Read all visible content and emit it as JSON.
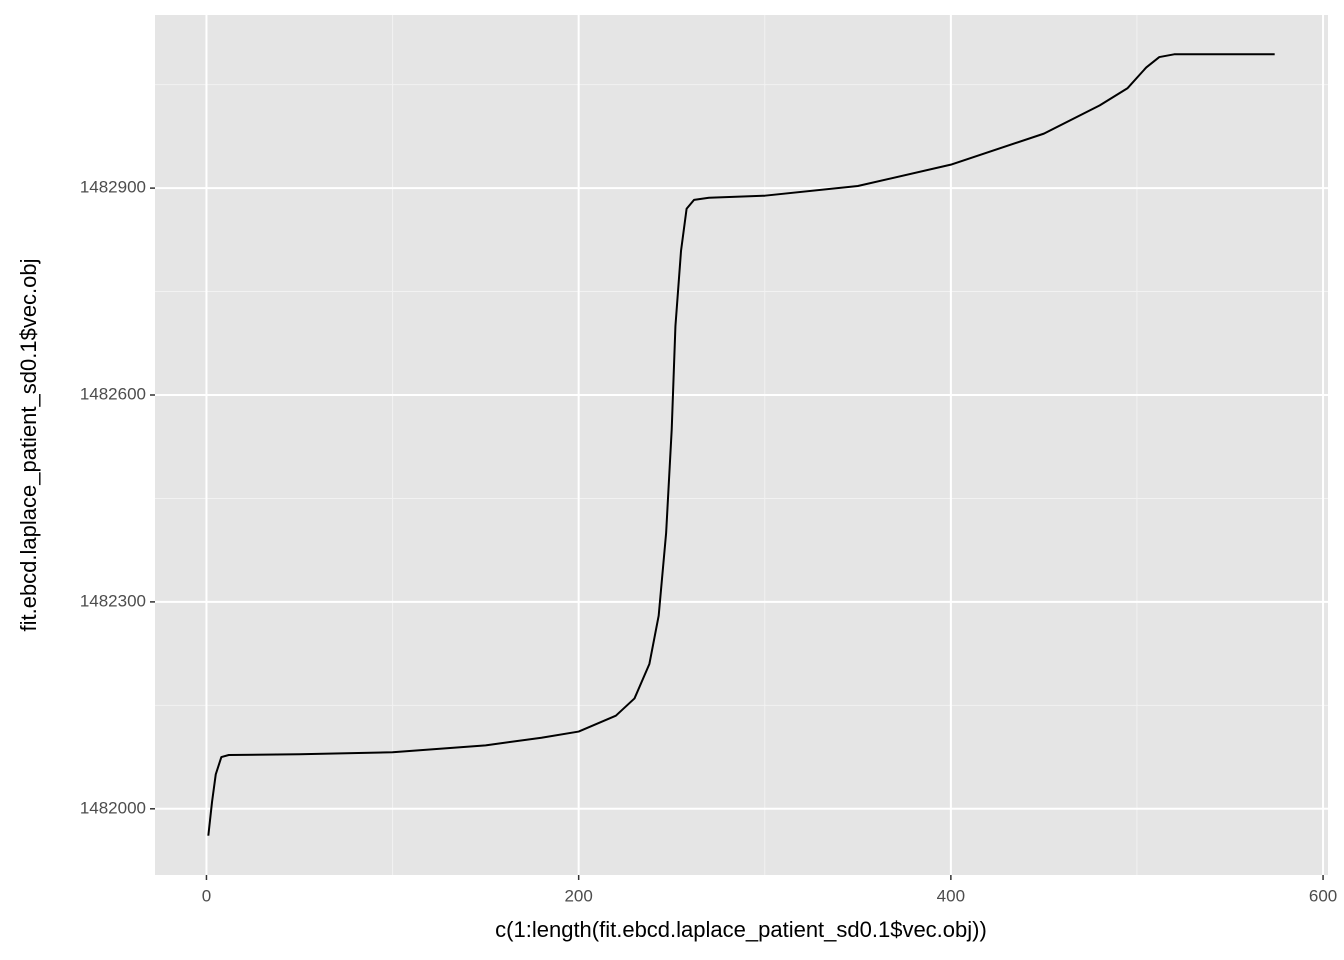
{
  "chart_data": {
    "type": "line",
    "xlabel": "c(1:length(fit.ebcd.laplace_patient_sd0.1$vec.obj))",
    "ylabel": "fit.ebcd.laplace_patient_sd0.1$vec.obj",
    "x": [
      1,
      3,
      5,
      8,
      12,
      50,
      100,
      150,
      180,
      200,
      220,
      230,
      238,
      243,
      247,
      250,
      252,
      255,
      258,
      262,
      270,
      300,
      350,
      400,
      450,
      480,
      495,
      505,
      512,
      520,
      574
    ],
    "values": [
      1481961,
      1482010,
      1482050,
      1482075,
      1482078,
      1482079,
      1482082,
      1482092,
      1482103,
      1482112,
      1482135,
      1482160,
      1482210,
      1482280,
      1482400,
      1482550,
      1482700,
      1482809,
      1482870,
      1482883,
      1482886,
      1482889,
      1482903,
      1482934,
      1482979,
      1483020,
      1483045,
      1483075,
      1483090,
      1483094,
      1483094
    ],
    "color": "#000000",
    "xlim": [
      -27.65,
      602.65
    ],
    "ylim": [
      1481904,
      1483151
    ],
    "xticks": [
      0,
      200,
      400,
      600
    ],
    "yticks": [
      1482000,
      1482300,
      1482600,
      1482900
    ],
    "xminor": [
      100,
      300,
      500
    ],
    "yminor": [
      1482150,
      1482450,
      1482750,
      1483050
    ],
    "grid": true
  }
}
